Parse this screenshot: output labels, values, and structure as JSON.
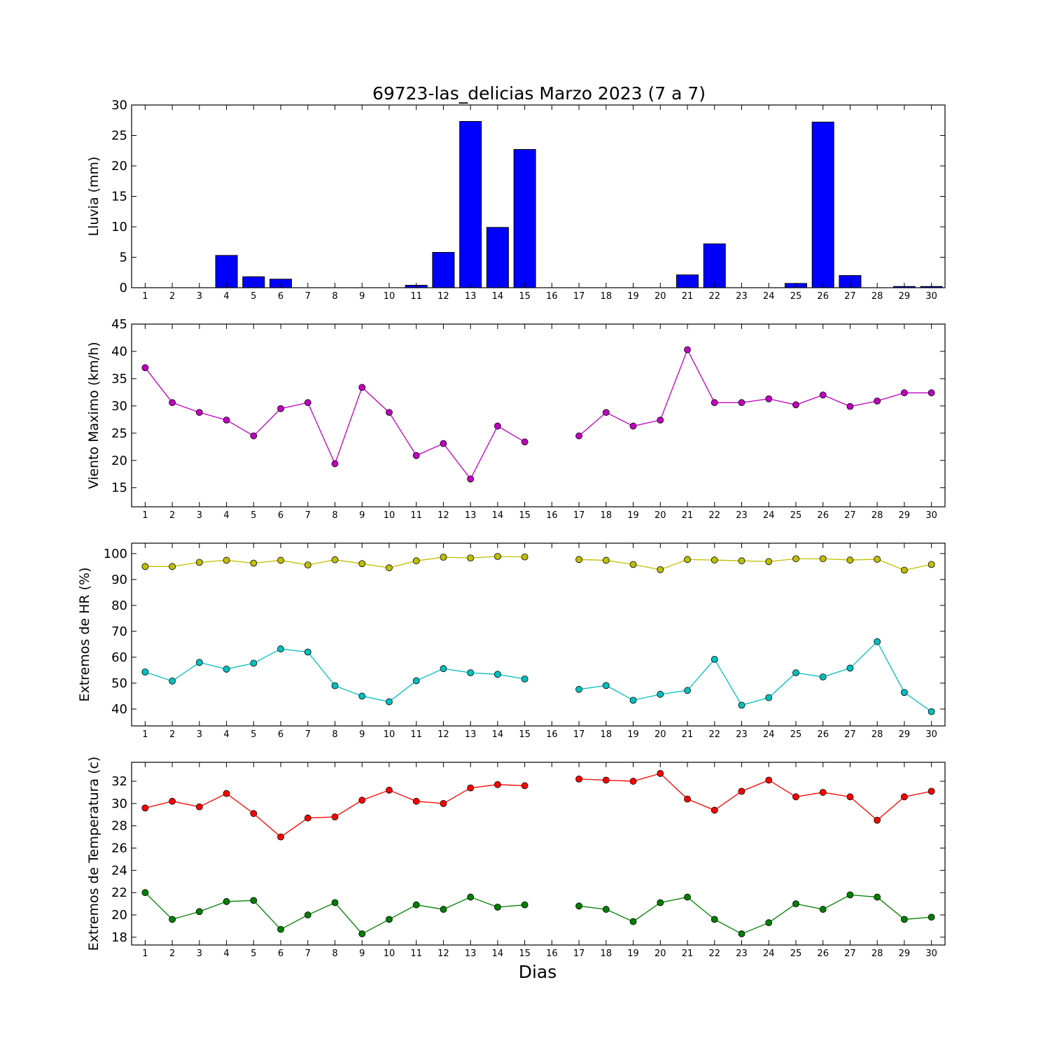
{
  "title": "69723-las_delicias Marzo 2023  (7 a 7)",
  "xlabel": "Dias",
  "chart_data": [
    {
      "type": "bar",
      "ylabel": "Lluvia (mm)",
      "ylim": [
        0,
        30
      ],
      "yticks": [
        0,
        5,
        10,
        15,
        20,
        25,
        30
      ],
      "x": [
        1,
        2,
        3,
        4,
        5,
        6,
        7,
        8,
        9,
        10,
        11,
        12,
        13,
        14,
        15,
        16,
        17,
        18,
        19,
        20,
        21,
        22,
        23,
        24,
        25,
        26,
        27,
        28,
        29,
        30
      ],
      "xticks": [
        1,
        2,
        3,
        4,
        5,
        6,
        7,
        8,
        9,
        10,
        11,
        12,
        13,
        14,
        15,
        16,
        17,
        18,
        19,
        20,
        21,
        22,
        23,
        24,
        25,
        26,
        27,
        28,
        29,
        30
      ],
      "series": [
        {
          "color": "#0000ff",
          "values": [
            0,
            0,
            0,
            5.3,
            1.8,
            1.4,
            0,
            0,
            0,
            0,
            0.4,
            5.8,
            27.3,
            9.9,
            22.7,
            0,
            0,
            0,
            0,
            0,
            2.1,
            7.2,
            0,
            0,
            0.7,
            27.2,
            2.0,
            0,
            0.2,
            0.2
          ]
        }
      ]
    },
    {
      "type": "line",
      "ylabel": "Viento Maximo (km/h)",
      "ylim": [
        11.5,
        45
      ],
      "yticks": [
        15,
        20,
        25,
        30,
        35,
        40,
        45
      ],
      "x": [
        1,
        2,
        3,
        4,
        5,
        6,
        7,
        8,
        9,
        10,
        11,
        12,
        13,
        14,
        15,
        16,
        17,
        18,
        19,
        20,
        21,
        22,
        23,
        24,
        25,
        26,
        27,
        28,
        29,
        30
      ],
      "xticks": [
        1,
        2,
        3,
        4,
        5,
        6,
        7,
        8,
        9,
        10,
        11,
        12,
        13,
        14,
        15,
        16,
        17,
        18,
        19,
        20,
        21,
        22,
        23,
        24,
        25,
        26,
        27,
        28,
        29,
        30
      ],
      "series": [
        {
          "color": "#bf00bf",
          "values": [
            37.0,
            30.6,
            28.8,
            27.4,
            24.5,
            29.5,
            30.6,
            19.4,
            33.4,
            28.8,
            20.9,
            23.1,
            16.6,
            26.3,
            23.4,
            null,
            24.5,
            28.8,
            26.3,
            27.4,
            40.3,
            30.6,
            30.6,
            31.3,
            30.2,
            32.0,
            29.9,
            30.9,
            32.4,
            32.4
          ]
        }
      ]
    },
    {
      "type": "line",
      "ylabel": "Extremos de HR (%)",
      "ylim": [
        33.5,
        104
      ],
      "yticks": [
        40,
        50,
        60,
        70,
        80,
        90,
        100
      ],
      "x": [
        1,
        2,
        3,
        4,
        5,
        6,
        7,
        8,
        9,
        10,
        11,
        12,
        13,
        14,
        15,
        16,
        17,
        18,
        19,
        20,
        21,
        22,
        23,
        24,
        25,
        26,
        27,
        28,
        29,
        30
      ],
      "xticks": [
        1,
        2,
        3,
        4,
        5,
        6,
        7,
        8,
        9,
        10,
        11,
        12,
        13,
        14,
        15,
        16,
        17,
        18,
        19,
        20,
        21,
        22,
        23,
        24,
        25,
        26,
        27,
        28,
        29,
        30
      ],
      "series": [
        {
          "color": "#bfbf00",
          "values": [
            95,
            95,
            96.6,
            97.4,
            96.3,
            97.4,
            95.6,
            97.6,
            96.1,
            94.5,
            97.2,
            98.6,
            98.3,
            98.9,
            98.7,
            null,
            97.7,
            97.4,
            95.8,
            93.8,
            97.7,
            97.5,
            97.2,
            96.9,
            98.0,
            98.0,
            97.5,
            97.8,
            93.6,
            95.8
          ]
        },
        {
          "color": "#00bfbf",
          "values": [
            54.3,
            50.8,
            58.0,
            55.4,
            57.7,
            63.2,
            62.0,
            49.0,
            45.0,
            42.8,
            50.9,
            55.6,
            54.0,
            53.4,
            51.6,
            null,
            47.6,
            49.1,
            43.4,
            45.7,
            47.2,
            59.2,
            41.5,
            44.4,
            54.0,
            52.4,
            55.8,
            66.0,
            46.4,
            39.0
          ]
        }
      ]
    },
    {
      "type": "line",
      "ylabel": "Extremos de Temperatura (c)",
      "ylim": [
        17.3,
        33.7
      ],
      "yticks": [
        18,
        20,
        22,
        24,
        26,
        28,
        30,
        32
      ],
      "x": [
        1,
        2,
        3,
        4,
        5,
        6,
        7,
        8,
        9,
        10,
        11,
        12,
        13,
        14,
        15,
        16,
        17,
        18,
        19,
        20,
        21,
        22,
        23,
        24,
        25,
        26,
        27,
        28,
        29,
        30
      ],
      "xticks": [
        1,
        2,
        3,
        4,
        5,
        6,
        7,
        8,
        9,
        10,
        11,
        12,
        13,
        14,
        15,
        16,
        17,
        18,
        19,
        20,
        21,
        22,
        23,
        24,
        25,
        26,
        27,
        28,
        29,
        30
      ],
      "series": [
        {
          "color": "#ff0000",
          "values": [
            29.6,
            30.2,
            29.7,
            30.9,
            29.1,
            27.0,
            28.7,
            28.8,
            30.3,
            31.2,
            30.2,
            30.0,
            31.4,
            31.7,
            31.6,
            null,
            32.2,
            32.1,
            32.0,
            32.7,
            30.4,
            29.4,
            31.1,
            32.1,
            30.6,
            31.0,
            30.6,
            28.5,
            30.6,
            31.1
          ]
        },
        {
          "color": "#007f00",
          "values": [
            22.0,
            19.6,
            20.3,
            21.2,
            21.3,
            18.7,
            20.0,
            21.1,
            18.3,
            19.6,
            20.9,
            20.5,
            21.6,
            20.7,
            20.9,
            null,
            20.8,
            20.5,
            19.4,
            21.1,
            21.6,
            19.6,
            18.3,
            19.3,
            21.0,
            20.5,
            21.8,
            21.6,
            19.6,
            19.8
          ]
        }
      ]
    }
  ]
}
